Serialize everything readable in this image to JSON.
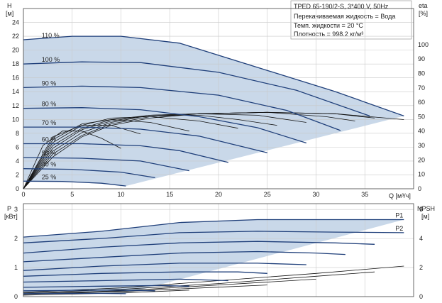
{
  "header": {
    "model": "TPED 65-190/2-S, 3*400 V, 50Hz",
    "liquid": "Перекачиваемая жидкость = Вода",
    "temperature": "Темп. жидкости = 20 °C",
    "density": "Плотность = 998.2 кг/м³"
  },
  "chart_data": [
    {
      "type": "line",
      "name": "head",
      "ylabel": "H",
      "yunit": "[м]",
      "y2label": "eta",
      "y2unit": "[%]",
      "xlabel": "Q [м³/ч]",
      "xlim": [
        0,
        40
      ],
      "ylim": [
        0,
        26
      ],
      "y2lim": [
        0,
        125
      ],
      "xticks": [
        0,
        5,
        10,
        15,
        20,
        25,
        30,
        35
      ],
      "yticks": [
        0,
        2,
        4,
        6,
        8,
        10,
        12,
        14,
        16,
        18,
        20,
        22,
        24
      ],
      "y2ticks": [
        0,
        10,
        20,
        30,
        40,
        50,
        60,
        70,
        80,
        90,
        100
      ],
      "series": [
        {
          "name": "110 %",
          "x": [
            0,
            5,
            10,
            16,
            24,
            32,
            39
          ],
          "y": [
            21.5,
            22,
            22,
            21,
            17.5,
            14,
            10.5
          ]
        },
        {
          "name": "100 %",
          "x": [
            0,
            6,
            12,
            20,
            28,
            35.5
          ],
          "y": [
            18,
            18.3,
            18.2,
            16.8,
            14.2,
            10.5
          ]
        },
        {
          "name": "90 %",
          "x": [
            0,
            6,
            12,
            20,
            27,
            32.5
          ],
          "y": [
            14.6,
            14.8,
            14.6,
            13.5,
            11.3,
            8.4
          ]
        },
        {
          "name": "80 %",
          "x": [
            0,
            6,
            12,
            18,
            24,
            29
          ],
          "y": [
            11.6,
            11.7,
            11.4,
            10.4,
            8.8,
            6.6
          ]
        },
        {
          "name": "70 %",
          "x": [
            0,
            6,
            12,
            18,
            25
          ],
          "y": [
            8.9,
            8.9,
            8.6,
            7.6,
            5.2
          ]
        },
        {
          "name": "60 %",
          "x": [
            0,
            6,
            12,
            16,
            21
          ],
          "y": [
            6.5,
            6.5,
            6.2,
            5.5,
            3.8
          ]
        },
        {
          "name": "50 %",
          "x": [
            0,
            6,
            12,
            17
          ],
          "y": [
            4.5,
            4.4,
            4.0,
            2.6
          ]
        },
        {
          "name": "40 %",
          "x": [
            0,
            5,
            10,
            13.5
          ],
          "y": [
            2.9,
            2.8,
            2.4,
            1.6
          ]
        },
        {
          "name": "25 %",
          "x": [
            0,
            4,
            8,
            10.5
          ],
          "y": [
            1.1,
            1.05,
            0.8,
            0.4
          ]
        }
      ],
      "eta_series": [
        {
          "x": [
            0,
            3,
            6,
            9,
            13,
            18,
            25,
            32,
            39
          ],
          "y": [
            0,
            22,
            36,
            44,
            49,
            52,
            53,
            52,
            48
          ]
        },
        {
          "x": [
            0,
            3,
            6,
            9,
            13,
            18,
            25,
            32,
            36
          ],
          "y": [
            0,
            24,
            37,
            45,
            50,
            52,
            53,
            52,
            49
          ]
        },
        {
          "x": [
            0,
            3,
            6,
            9,
            13,
            18,
            25,
            31,
            34
          ],
          "y": [
            0,
            26,
            39,
            46,
            51,
            52,
            53,
            50,
            47
          ]
        },
        {
          "x": [
            0,
            3,
            6,
            9,
            13,
            18,
            24,
            29
          ],
          "y": [
            0,
            28,
            41,
            47,
            51,
            52,
            51,
            46
          ]
        },
        {
          "x": [
            0,
            3,
            6,
            9,
            13,
            18,
            22,
            26
          ],
          "y": [
            0,
            30,
            42,
            48,
            51,
            51,
            48,
            44
          ]
        },
        {
          "x": [
            0,
            3,
            6,
            9,
            13,
            18,
            22
          ],
          "y": [
            0,
            32,
            44,
            49,
            50,
            47,
            42
          ]
        },
        {
          "x": [
            0,
            3,
            6,
            9,
            13,
            17
          ],
          "y": [
            0,
            34,
            45,
            48,
            46,
            40
          ]
        },
        {
          "x": [
            0,
            3,
            6,
            9,
            12
          ],
          "y": [
            0,
            36,
            44,
            44,
            38
          ]
        },
        {
          "x": [
            0,
            2,
            4,
            6,
            8,
            10
          ],
          "y": [
            0,
            30,
            40,
            40,
            35,
            28
          ]
        }
      ],
      "labels_x": 1.0
    },
    {
      "type": "line",
      "name": "power",
      "ylabel": "P",
      "yunit": "[кВт]",
      "y2label": "NPSH",
      "y2unit": "[м]",
      "xlim": [
        0,
        40
      ],
      "ylim": [
        0,
        3.2
      ],
      "y2lim": [
        0,
        6.4
      ],
      "yticks": [
        0,
        1,
        2,
        3
      ],
      "y2ticks": [
        0,
        2,
        4,
        6
      ],
      "series": [
        {
          "name": "P1",
          "x": [
            0,
            8,
            16,
            24,
            32,
            39
          ],
          "y": [
            2.05,
            2.25,
            2.55,
            2.65,
            2.65,
            2.65
          ]
        },
        {
          "name": "P2",
          "x": [
            0,
            8,
            16,
            24,
            32,
            39
          ],
          "y": [
            1.85,
            2.0,
            2.2,
            2.25,
            2.22,
            2.2
          ]
        },
        {
          "name": "",
          "x": [
            0,
            8,
            16,
            24,
            32,
            36
          ],
          "y": [
            1.5,
            1.7,
            1.85,
            1.9,
            1.85,
            1.8
          ]
        },
        {
          "name": "",
          "x": [
            0,
            8,
            16,
            24,
            30,
            33
          ],
          "y": [
            1.2,
            1.35,
            1.5,
            1.55,
            1.5,
            1.45
          ]
        },
        {
          "name": "",
          "x": [
            0,
            8,
            16,
            24,
            29
          ],
          "y": [
            0.9,
            1.05,
            1.15,
            1.15,
            1.1
          ]
        },
        {
          "name": "",
          "x": [
            0,
            8,
            16,
            22,
            25
          ],
          "y": [
            0.7,
            0.8,
            0.85,
            0.85,
            0.8
          ]
        },
        {
          "name": "",
          "x": [
            0,
            8,
            16,
            21
          ],
          "y": [
            0.5,
            0.55,
            0.6,
            0.55
          ]
        },
        {
          "name": "",
          "x": [
            0,
            8,
            14,
            17
          ],
          "y": [
            0.32,
            0.36,
            0.38,
            0.36
          ]
        },
        {
          "name": "",
          "x": [
            0,
            6,
            10,
            13.5
          ],
          "y": [
            0.2,
            0.22,
            0.22,
            0.2
          ]
        },
        {
          "name": "",
          "x": [
            0,
            5,
            8,
            10.5
          ],
          "y": [
            0.1,
            0.11,
            0.11,
            0.1
          ]
        }
      ],
      "npsh_series": [
        {
          "x": [
            0,
            10,
            20,
            30,
            39
          ],
          "y": [
            0.3,
            0.6,
            1.1,
            1.6,
            2.1
          ]
        },
        {
          "x": [
            0,
            10,
            20,
            30,
            36
          ],
          "y": [
            0.25,
            0.5,
            0.9,
            1.4,
            1.7
          ]
        },
        {
          "x": [
            0,
            10,
            20,
            30
          ],
          "y": [
            0.2,
            0.4,
            0.8,
            1.2
          ]
        },
        {
          "x": [
            0,
            10,
            20,
            25
          ],
          "y": [
            0.15,
            0.35,
            0.65,
            0.8
          ]
        },
        {
          "x": [
            0,
            10,
            17
          ],
          "y": [
            0.1,
            0.25,
            0.45
          ]
        }
      ]
    }
  ]
}
